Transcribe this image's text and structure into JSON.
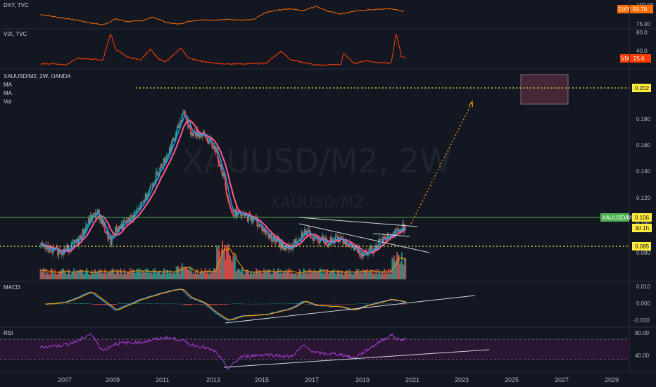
{
  "panes": {
    "dxy": {
      "label": "DXY, TVC",
      "ticks": [
        "100.00",
        "75.00"
      ],
      "tag": "DXY",
      "tag_value": "93.76"
    },
    "vix": {
      "label": "VIX, TVC",
      "ticks": [
        "80.0",
        "40.0"
      ],
      "tag": "VIX",
      "tag_value": "25.6"
    },
    "main": {
      "label": "XAUUSD/M2, 2W, OANDA",
      "indicators": [
        "MA",
        "MA",
        "Vol"
      ],
      "watermark_big": "XAUUSD/M2, 2W",
      "watermark_small": "XAUUSD/M2",
      "ticks": [
        "0.180",
        "0.160",
        "0.140",
        "0.120",
        "0.100",
        "0.080"
      ],
      "tags": {
        "top": "0.202",
        "symbol": "XAUUSD/M2",
        "price": "0.106",
        "countdown": "3d 1h",
        "bottom": "0.085"
      }
    },
    "macd": {
      "label": "MACD",
      "ticks": [
        "0.010",
        "0.000",
        "-0.010"
      ]
    },
    "rsi": {
      "label": "RSI",
      "ticks": [
        "80.00",
        "40.00"
      ]
    }
  },
  "x_axis": {
    "labels": [
      "2007",
      "2009",
      "2011",
      "2013",
      "2015",
      "2017",
      "2019",
      "2021",
      "2023",
      "2025",
      "2027",
      "2029"
    ]
  },
  "colors": {
    "bg": "#131722",
    "up": "#26a69a",
    "down": "#ef5350",
    "ma_fast": "#2196f3",
    "ma_slow": "#ff5a8a",
    "dxy": "#ff6d00",
    "vix": "#ff3d00",
    "rsi": "#a83fd6",
    "rsi_band": "#2a1633",
    "level_yellow": "#ffeb3b",
    "level_green": "#4caf50",
    "projection": "#ff9800",
    "target_box": "#4a2a3a"
  },
  "chart_data": [
    {
      "type": "line",
      "title": "DXY, TVC",
      "x": [
        2006.0,
        2006.5,
        2007.0,
        2007.5,
        2008.0,
        2008.5,
        2009.0,
        2009.5,
        2010.0,
        2010.5,
        2011.0,
        2011.5,
        2012.0,
        2012.5,
        2013.0,
        2013.5,
        2014.0,
        2014.5,
        2015.0,
        2015.5,
        2016.0,
        2016.5,
        2017.0,
        2017.5,
        2018.0,
        2018.5,
        2019.0,
        2019.5,
        2020.0,
        2020.5
      ],
      "y": [
        89,
        86,
        83,
        80,
        76,
        73,
        82,
        78,
        79,
        85,
        77,
        74,
        79,
        81,
        80,
        82,
        80,
        81,
        92,
        96,
        98,
        95,
        102,
        94,
        90,
        94,
        96,
        97,
        98,
        93.76
      ],
      "ylim": [
        70,
        105
      ]
    },
    {
      "type": "line",
      "title": "VIX, TVC",
      "x": [
        2006.0,
        2006.5,
        2007.0,
        2007.5,
        2008.0,
        2008.5,
        2008.8,
        2009.0,
        2009.5,
        2010.0,
        2010.4,
        2010.7,
        2011.0,
        2011.6,
        2011.9,
        2012.5,
        2013.0,
        2014.0,
        2015.0,
        2015.6,
        2016.0,
        2017.0,
        2018.0,
        2018.1,
        2018.5,
        2019.0,
        2019.5,
        2020.0,
        2020.2,
        2020.4,
        2020.6
      ],
      "y": [
        12,
        14,
        11,
        25,
        24,
        22,
        80,
        45,
        28,
        21,
        46,
        24,
        18,
        48,
        26,
        18,
        14,
        13,
        14,
        41,
        22,
        10,
        12,
        37,
        14,
        20,
        16,
        14,
        82,
        30,
        25.6
      ],
      "ylim": [
        5,
        85
      ]
    },
    {
      "type": "line",
      "title": "XAUUSD/M2, 2W, OANDA",
      "x": [
        2006.0,
        2006.5,
        2007.0,
        2007.5,
        2008.0,
        2008.3,
        2008.8,
        2009.0,
        2009.5,
        2010.0,
        2010.5,
        2011.0,
        2011.4,
        2011.7,
        2012.0,
        2012.5,
        2013.0,
        2013.3,
        2013.6,
        2014.0,
        2014.5,
        2015.0,
        2015.5,
        2015.9,
        2016.5,
        2017.0,
        2017.5,
        2018.0,
        2018.5,
        2018.8,
        2019.3,
        2019.8,
        2020.0,
        2020.3,
        2020.6
      ],
      "y": [
        0.091,
        0.087,
        0.088,
        0.094,
        0.11,
        0.114,
        0.093,
        0.102,
        0.108,
        0.118,
        0.136,
        0.152,
        0.168,
        0.185,
        0.17,
        0.168,
        0.158,
        0.14,
        0.115,
        0.112,
        0.11,
        0.1,
        0.093,
        0.088,
        0.101,
        0.096,
        0.094,
        0.097,
        0.089,
        0.086,
        0.089,
        0.097,
        0.098,
        0.101,
        0.106
      ],
      "ylim": [
        0.075,
        0.21
      ],
      "levels": [
        0.202,
        0.106,
        0.085
      ]
    },
    {
      "type": "line",
      "title": "MACD",
      "x": [
        2006.2,
        2007.0,
        2008.0,
        2008.5,
        2009.0,
        2010.0,
        2011.0,
        2011.6,
        2012.0,
        2012.5,
        2013.0,
        2013.5,
        2014.0,
        2015.0,
        2016.0,
        2016.5,
        2017.0,
        2018.0,
        2018.5,
        2019.0,
        2020.0,
        2020.6
      ],
      "y": [
        0.0,
        0.001,
        0.008,
        0.002,
        -0.004,
        0.003,
        0.008,
        0.01,
        0.004,
        0.001,
        -0.006,
        -0.011,
        -0.008,
        -0.007,
        -0.003,
        0.002,
        -0.001,
        -0.002,
        -0.004,
        -0.001,
        0.003,
        0.001
      ],
      "ylim": [
        -0.013,
        0.013
      ]
    },
    {
      "type": "line",
      "title": "RSI",
      "x": [
        2006.0,
        2007.0,
        2007.5,
        2008.0,
        2008.5,
        2009.0,
        2010.0,
        2011.0,
        2011.6,
        2012.0,
        2012.5,
        2013.0,
        2013.5,
        2014.0,
        2015.0,
        2016.0,
        2016.5,
        2017.0,
        2018.0,
        2018.5,
        2019.0,
        2019.5,
        2020.0,
        2020.3,
        2020.6
      ],
      "y": [
        58,
        62,
        68,
        80,
        52,
        64,
        66,
        74,
        70,
        62,
        58,
        50,
        22,
        42,
        46,
        42,
        60,
        48,
        46,
        40,
        52,
        66,
        78,
        70,
        72
      ],
      "ylim": [
        20,
        85
      ]
    }
  ]
}
